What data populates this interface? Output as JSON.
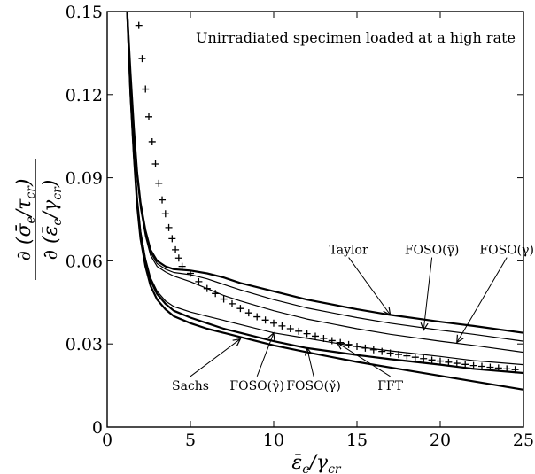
{
  "chart_data": {
    "type": "line",
    "title": "Unirradiated specimen loaded at a high rate",
    "xlabel": "ε̄e/γcr",
    "ylabel": "∂(σ̄e/τcr) / ∂(ε̄e/γcr)",
    "xlim": [
      0,
      25
    ],
    "ylim": [
      0,
      0.15
    ],
    "x_ticks": [
      0,
      5,
      10,
      15,
      20,
      25
    ],
    "x_tick_labels": [
      "0",
      "5",
      "10",
      "15",
      "20",
      "25"
    ],
    "y_ticks": [
      0,
      0.03,
      0.06,
      0.09,
      0.12,
      0.15
    ],
    "y_tick_labels": [
      "0",
      "0.03",
      "0.06",
      "0.09",
      "0.12",
      "0.15"
    ],
    "grid": false,
    "series": [
      {
        "name": "Taylor",
        "style": "line-thick",
        "x": [
          1.2,
          1.4,
          1.6,
          1.8,
          2.0,
          2.3,
          2.6,
          3.0,
          3.5,
          4.0,
          5.0,
          6.0,
          7.0,
          8.0,
          10.0,
          12.0,
          15.0,
          17.0,
          20.0,
          22.0,
          25.0
        ],
        "y": [
          0.15,
          0.128,
          0.108,
          0.092,
          0.081,
          0.071,
          0.064,
          0.06,
          0.058,
          0.057,
          0.0565,
          0.0555,
          0.054,
          0.052,
          0.049,
          0.046,
          0.0425,
          0.0405,
          0.038,
          0.0365,
          0.034
        ]
      },
      {
        "name": "FOSO(γ̿)",
        "style": "line",
        "x": [
          1.2,
          1.4,
          1.6,
          1.8,
          2.0,
          2.3,
          2.6,
          3.0,
          3.5,
          4.0,
          5.0,
          6.0,
          7.0,
          8.0,
          10.0,
          12.0,
          15.0,
          17.0,
          20.0,
          22.0,
          25.0
        ],
        "y": [
          0.15,
          0.127,
          0.107,
          0.091,
          0.08,
          0.07,
          0.063,
          0.059,
          0.057,
          0.0558,
          0.055,
          0.0535,
          0.0515,
          0.0495,
          0.046,
          0.043,
          0.0395,
          0.0375,
          0.035,
          0.0335,
          0.031
        ]
      },
      {
        "name": "FOSO(γ̄)",
        "style": "line",
        "x": [
          1.2,
          1.4,
          1.6,
          1.8,
          2.0,
          2.3,
          2.6,
          3.0,
          3.5,
          4.0,
          5.0,
          6.0,
          7.0,
          8.0,
          10.0,
          12.0,
          15.0,
          17.0,
          20.0,
          22.0,
          25.0
        ],
        "y": [
          0.15,
          0.126,
          0.106,
          0.09,
          0.079,
          0.069,
          0.062,
          0.058,
          0.056,
          0.0545,
          0.0525,
          0.05,
          0.0475,
          0.0455,
          0.042,
          0.039,
          0.0355,
          0.0335,
          0.031,
          0.0295,
          0.027
        ]
      },
      {
        "name": "Sachs",
        "style": "line-thick",
        "x": [
          1.2,
          1.4,
          1.6,
          1.8,
          2.0,
          2.3,
          2.6,
          3.0,
          3.5,
          4.0,
          5.0,
          6.0,
          7.0,
          8.0,
          10.0,
          12.0,
          15.0,
          17.0,
          20.0,
          22.0,
          25.0
        ],
        "y": [
          0.15,
          0.12,
          0.098,
          0.08,
          0.068,
          0.058,
          0.051,
          0.046,
          0.0425,
          0.04,
          0.0375,
          0.0355,
          0.034,
          0.0325,
          0.0295,
          0.027,
          0.0235,
          0.0215,
          0.0185,
          0.0165,
          0.0135
        ]
      },
      {
        "name": "FOSO(γ̂)",
        "style": "line",
        "x": [
          1.2,
          1.4,
          1.6,
          1.8,
          2.0,
          2.3,
          2.6,
          3.0,
          3.5,
          4.0,
          5.0,
          6.0,
          7.0,
          8.0,
          10.0,
          12.0,
          15.0,
          17.0,
          20.0,
          22.0,
          25.0
        ],
        "y": [
          0.15,
          0.122,
          0.1,
          0.083,
          0.071,
          0.061,
          0.054,
          0.049,
          0.0455,
          0.0435,
          0.0415,
          0.04,
          0.0385,
          0.037,
          0.034,
          0.032,
          0.029,
          0.0275,
          0.0255,
          0.024,
          0.0225
        ]
      },
      {
        "name": "FOSO(γ̌)",
        "style": "line-thick",
        "x": [
          1.2,
          1.4,
          1.6,
          1.8,
          2.0,
          2.3,
          2.6,
          3.0,
          3.5,
          4.0,
          5.0,
          6.0,
          7.0,
          8.0,
          10.0,
          12.0,
          15.0,
          17.0,
          20.0,
          22.0,
          25.0
        ],
        "y": [
          0.15,
          0.121,
          0.099,
          0.082,
          0.07,
          0.06,
          0.053,
          0.048,
          0.0445,
          0.042,
          0.0395,
          0.0375,
          0.0355,
          0.034,
          0.031,
          0.0285,
          0.026,
          0.0245,
          0.0225,
          0.021,
          0.0195
        ]
      },
      {
        "name": "FFT",
        "style": "marker-plus",
        "x": [
          1.9,
          2.1,
          2.3,
          2.5,
          2.7,
          2.9,
          3.1,
          3.3,
          3.5,
          3.7,
          3.9,
          4.1,
          4.3,
          4.5,
          5,
          5.5,
          6,
          6.5,
          7,
          7.5,
          8,
          8.5,
          9,
          9.5,
          10,
          10.5,
          11,
          11.5,
          12,
          12.5,
          13,
          13.5,
          14,
          14.5,
          15,
          15.5,
          16,
          16.5,
          17,
          17.5,
          18,
          18.5,
          19,
          19.5,
          20,
          20.5,
          21,
          21.5,
          22,
          22.5,
          23,
          23.5,
          24,
          24.5
        ],
        "y": [
          0.145,
          0.133,
          0.122,
          0.112,
          0.103,
          0.095,
          0.088,
          0.082,
          0.077,
          0.072,
          0.068,
          0.064,
          0.061,
          0.058,
          0.0555,
          0.0525,
          0.05,
          0.0482,
          0.0462,
          0.0445,
          0.0428,
          0.0412,
          0.0398,
          0.0386,
          0.0375,
          0.0365,
          0.0355,
          0.0346,
          0.0337,
          0.0328,
          0.032,
          0.0312,
          0.0305,
          0.0298,
          0.0291,
          0.0285,
          0.0279,
          0.0273,
          0.0267,
          0.0262,
          0.0257,
          0.0252,
          0.0247,
          0.0242,
          0.0238,
          0.0234,
          0.023,
          0.0226,
          0.0222,
          0.0219,
          0.0216,
          0.0213,
          0.021,
          0.0207
        ]
      }
    ],
    "annotations": [
      {
        "text": "Taylor",
        "pos": [
          14.5,
          0.0625
        ],
        "arrow_to": [
          17.0,
          0.0405
        ]
      },
      {
        "text": "FOSO(γ̿)",
        "pos": [
          19.5,
          0.0625
        ],
        "arrow_to": [
          19.0,
          0.035
        ]
      },
      {
        "text": "FOSO(γ̄)",
        "pos": [
          24.0,
          0.0625
        ],
        "arrow_to": [
          21.0,
          0.0305
        ]
      },
      {
        "text": "Sachs",
        "pos": [
          5.0,
          0.0135
        ],
        "arrow_to": [
          8.0,
          0.0318
        ]
      },
      {
        "text": "FOSO(γ̂)",
        "pos": [
          9.0,
          0.0135
        ],
        "arrow_to": [
          10.0,
          0.034
        ]
      },
      {
        "text": "FOSO(γ̌)",
        "pos": [
          12.4,
          0.0135
        ],
        "arrow_to": [
          12.0,
          0.0285
        ]
      },
      {
        "text": "FFT",
        "pos": [
          17.0,
          0.0135
        ],
        "arrow_to": [
          13.8,
          0.0305
        ]
      }
    ]
  }
}
